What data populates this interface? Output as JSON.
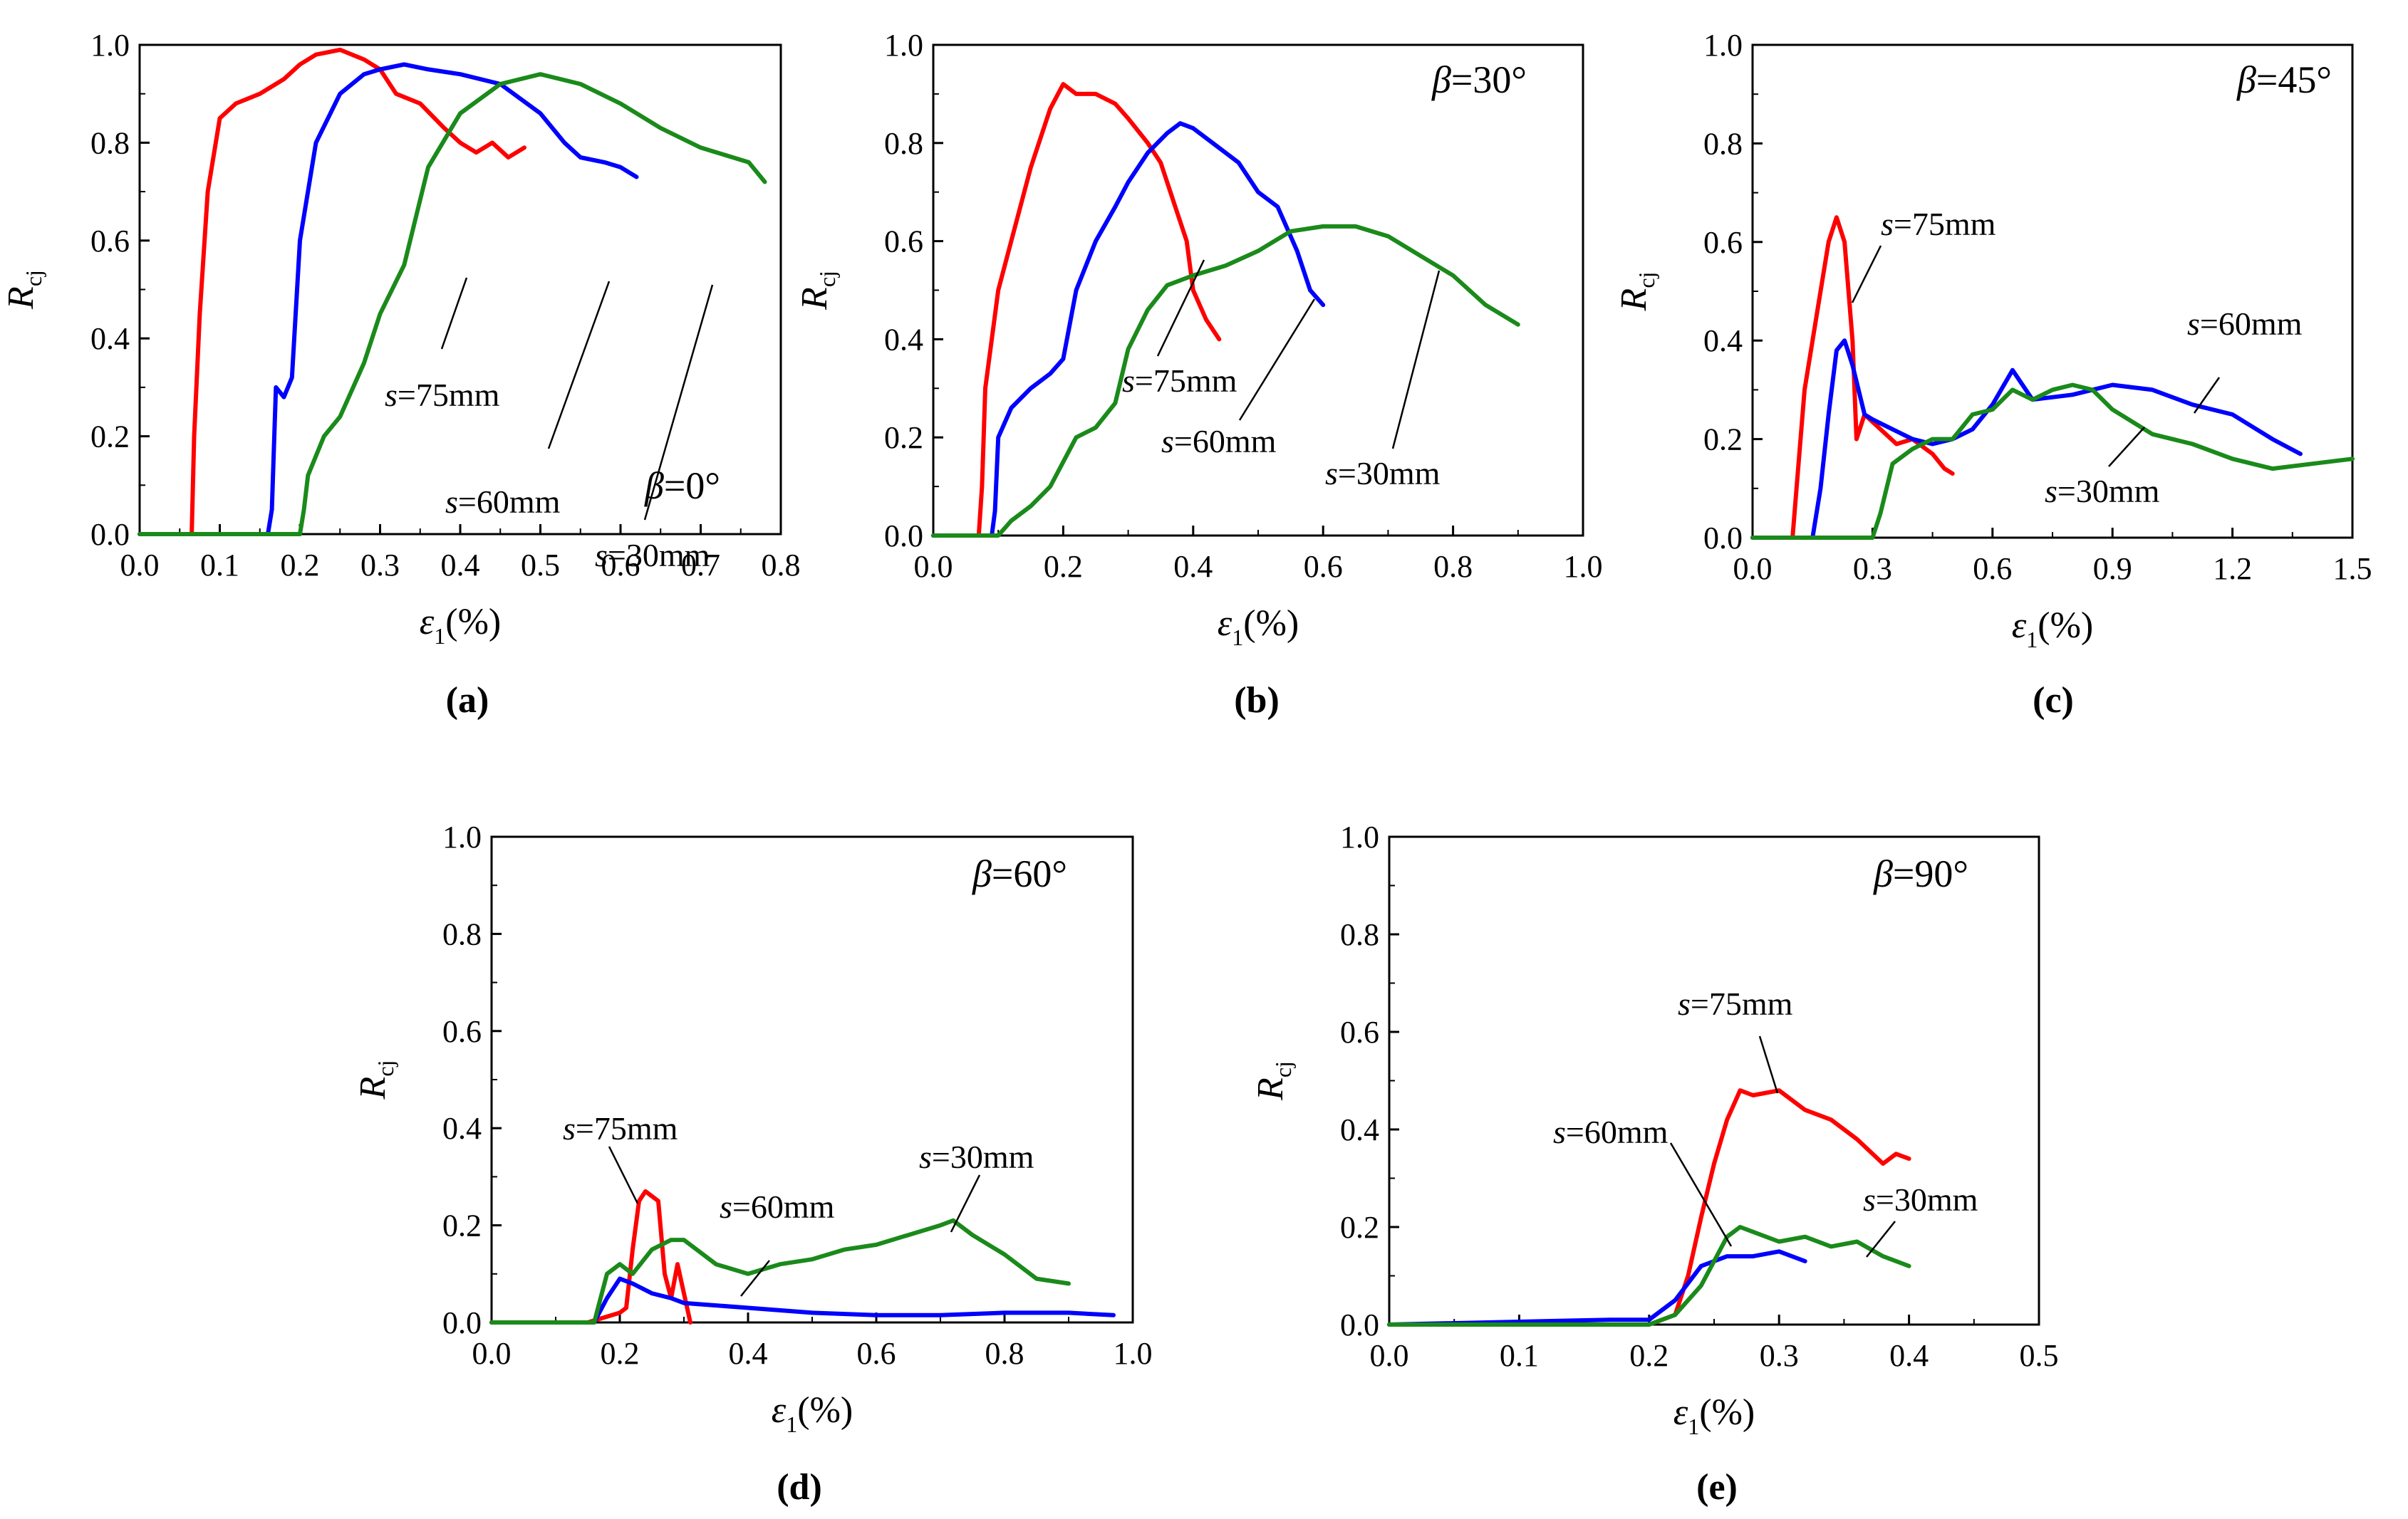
{
  "figure": {
    "series_colors": {
      "s=75mm": "#ff0000",
      "s=60mm": "#0000ff",
      "s=30mm": "#1a8a1a"
    }
  },
  "chart_data": [
    {
      "type": "line",
      "panel_label": "(a)",
      "beta": "β=0°",
      "xlabel": "ε1(%)",
      "ylabel": "Rcj",
      "xlim": [
        0.0,
        0.8
      ],
      "ylim": [
        0.0,
        1.0
      ],
      "xticks": [
        0.0,
        0.1,
        0.2,
        0.3,
        0.4,
        0.5,
        0.6,
        0.7,
        0.8
      ],
      "xtick_labels": [
        "0.0",
        "0.1",
        "0.2",
        "0.3",
        "0.4",
        "0.5",
        "0.6",
        "0.7",
        "0.8"
      ],
      "yticks": [
        0.0,
        0.2,
        0.4,
        0.6,
        0.8,
        1.0
      ],
      "ytick_labels": [
        "0.0",
        "0.2",
        "0.4",
        "0.6",
        "0.8",
        "1.0"
      ],
      "series": [
        {
          "name": "s=75mm",
          "color": "#ff0000",
          "x": [
            0,
            0.065,
            0.068,
            0.075,
            0.085,
            0.1,
            0.12,
            0.15,
            0.18,
            0.2,
            0.22,
            0.25,
            0.28,
            0.3,
            0.32,
            0.35,
            0.38,
            0.4,
            0.42,
            0.44,
            0.46,
            0.48
          ],
          "y": [
            0,
            0,
            0.2,
            0.45,
            0.7,
            0.85,
            0.88,
            0.9,
            0.93,
            0.96,
            0.98,
            0.99,
            0.97,
            0.95,
            0.9,
            0.88,
            0.83,
            0.8,
            0.78,
            0.8,
            0.77,
            0.79
          ]
        },
        {
          "name": "s=60mm",
          "color": "#0000ff",
          "x": [
            0,
            0.16,
            0.165,
            0.17,
            0.18,
            0.19,
            0.2,
            0.22,
            0.25,
            0.28,
            0.3,
            0.33,
            0.36,
            0.4,
            0.45,
            0.5,
            0.53,
            0.55,
            0.58,
            0.6,
            0.62
          ],
          "y": [
            0,
            0,
            0.05,
            0.3,
            0.28,
            0.32,
            0.6,
            0.8,
            0.9,
            0.94,
            0.95,
            0.96,
            0.95,
            0.94,
            0.92,
            0.86,
            0.8,
            0.77,
            0.76,
            0.75,
            0.73
          ]
        },
        {
          "name": "s=30mm",
          "color": "#1a8a1a",
          "x": [
            0,
            0.2,
            0.205,
            0.21,
            0.23,
            0.25,
            0.28,
            0.3,
            0.33,
            0.36,
            0.4,
            0.45,
            0.5,
            0.55,
            0.6,
            0.65,
            0.7,
            0.74,
            0.76,
            0.78
          ],
          "y": [
            0,
            0,
            0.05,
            0.12,
            0.2,
            0.24,
            0.35,
            0.45,
            0.55,
            0.75,
            0.86,
            0.92,
            0.94,
            0.92,
            0.88,
            0.83,
            0.79,
            0.77,
            0.76,
            0.72
          ]
        }
      ],
      "annotations": [
        "s=75mm",
        "s=60mm",
        "s=30mm"
      ]
    },
    {
      "type": "line",
      "panel_label": "(b)",
      "beta": "β=30°",
      "xlabel": "ε1(%)",
      "ylabel": "Rcj",
      "xlim": [
        0.0,
        1.0
      ],
      "ylim": [
        0.0,
        1.0
      ],
      "xticks": [
        0.0,
        0.2,
        0.4,
        0.6,
        0.8,
        1.0
      ],
      "xtick_labels": [
        "0.0",
        "0.2",
        "0.4",
        "0.6",
        "0.8",
        "1.0"
      ],
      "yticks": [
        0.0,
        0.2,
        0.4,
        0.6,
        0.8,
        1.0
      ],
      "ytick_labels": [
        "0.0",
        "0.2",
        "0.4",
        "0.6",
        "0.8",
        "1.0"
      ],
      "series": [
        {
          "name": "s=75mm",
          "color": "#ff0000",
          "x": [
            0,
            0.07,
            0.075,
            0.08,
            0.1,
            0.12,
            0.15,
            0.18,
            0.2,
            0.22,
            0.25,
            0.28,
            0.3,
            0.33,
            0.35,
            0.37,
            0.39,
            0.4,
            0.42,
            0.44
          ],
          "y": [
            0,
            0,
            0.1,
            0.3,
            0.5,
            0.6,
            0.75,
            0.87,
            0.92,
            0.9,
            0.9,
            0.88,
            0.85,
            0.8,
            0.76,
            0.68,
            0.6,
            0.5,
            0.44,
            0.4
          ]
        },
        {
          "name": "s=60mm",
          "color": "#0000ff",
          "x": [
            0,
            0.09,
            0.095,
            0.1,
            0.12,
            0.15,
            0.18,
            0.2,
            0.22,
            0.25,
            0.28,
            0.3,
            0.33,
            0.36,
            0.38,
            0.4,
            0.43,
            0.47,
            0.5,
            0.53,
            0.56,
            0.58,
            0.6
          ],
          "y": [
            0,
            0,
            0.05,
            0.2,
            0.26,
            0.3,
            0.33,
            0.36,
            0.5,
            0.6,
            0.67,
            0.72,
            0.78,
            0.82,
            0.84,
            0.83,
            0.8,
            0.76,
            0.7,
            0.67,
            0.58,
            0.5,
            0.47
          ]
        },
        {
          "name": "s=30mm",
          "color": "#1a8a1a",
          "x": [
            0,
            0.1,
            0.12,
            0.15,
            0.18,
            0.2,
            0.22,
            0.25,
            0.28,
            0.3,
            0.33,
            0.36,
            0.4,
            0.45,
            0.5,
            0.55,
            0.6,
            0.65,
            0.7,
            0.75,
            0.8,
            0.85,
            0.9
          ],
          "y": [
            0,
            0,
            0.03,
            0.06,
            0.1,
            0.15,
            0.2,
            0.22,
            0.27,
            0.38,
            0.46,
            0.51,
            0.53,
            0.55,
            0.58,
            0.62,
            0.63,
            0.63,
            0.61,
            0.57,
            0.53,
            0.47,
            0.43
          ]
        }
      ],
      "annotations": [
        "s=75mm",
        "s=60mm",
        "s=30mm"
      ]
    },
    {
      "type": "line",
      "panel_label": "(c)",
      "beta": "β=45°",
      "xlabel": "ε1(%)",
      "ylabel": "Rcj",
      "xlim": [
        0.0,
        1.5
      ],
      "ylim": [
        0.0,
        1.0
      ],
      "xticks": [
        0.0,
        0.3,
        0.6,
        0.9,
        1.2,
        1.5
      ],
      "xtick_labels": [
        "0.0",
        "0.3",
        "0.6",
        "0.9",
        "1.2",
        "1.5"
      ],
      "yticks": [
        0.0,
        0.2,
        0.4,
        0.6,
        0.8,
        1.0
      ],
      "ytick_labels": [
        "0.0",
        "0.2",
        "0.4",
        "0.6",
        "0.8",
        "1.0"
      ],
      "series": [
        {
          "name": "s=75mm",
          "color": "#ff0000",
          "x": [
            0,
            0.1,
            0.11,
            0.13,
            0.16,
            0.19,
            0.21,
            0.23,
            0.25,
            0.26,
            0.28,
            0.32,
            0.36,
            0.4,
            0.45,
            0.48,
            0.5
          ],
          "y": [
            0,
            0,
            0.1,
            0.3,
            0.45,
            0.6,
            0.65,
            0.6,
            0.4,
            0.2,
            0.25,
            0.22,
            0.19,
            0.2,
            0.17,
            0.14,
            0.13
          ]
        },
        {
          "name": "s=60mm",
          "color": "#0000ff",
          "x": [
            0,
            0.15,
            0.17,
            0.19,
            0.21,
            0.23,
            0.25,
            0.28,
            0.3,
            0.35,
            0.4,
            0.45,
            0.5,
            0.55,
            0.6,
            0.65,
            0.7,
            0.8,
            0.9,
            1.0,
            1.1,
            1.2,
            1.3,
            1.37
          ],
          "y": [
            0,
            0,
            0.1,
            0.25,
            0.38,
            0.4,
            0.35,
            0.25,
            0.24,
            0.22,
            0.2,
            0.19,
            0.2,
            0.22,
            0.27,
            0.34,
            0.28,
            0.29,
            0.31,
            0.3,
            0.27,
            0.25,
            0.2,
            0.17
          ]
        },
        {
          "name": "s=30mm",
          "color": "#1a8a1a",
          "x": [
            0,
            0.3,
            0.32,
            0.35,
            0.4,
            0.45,
            0.5,
            0.55,
            0.6,
            0.65,
            0.7,
            0.75,
            0.8,
            0.85,
            0.9,
            1.0,
            1.1,
            1.2,
            1.3,
            1.4,
            1.5
          ],
          "y": [
            0,
            0,
            0.05,
            0.15,
            0.18,
            0.2,
            0.2,
            0.25,
            0.26,
            0.3,
            0.28,
            0.3,
            0.31,
            0.3,
            0.26,
            0.21,
            0.19,
            0.16,
            0.14,
            0.15,
            0.16
          ]
        }
      ],
      "annotations": [
        "s=75mm",
        "s=60mm",
        "s=30mm"
      ]
    },
    {
      "type": "line",
      "panel_label": "(d)",
      "beta": "β=60°",
      "xlabel": "ε1(%)",
      "ylabel": "Rcj",
      "xlim": [
        0.0,
        1.0
      ],
      "ylim": [
        0.0,
        1.0
      ],
      "xticks": [
        0.0,
        0.2,
        0.4,
        0.6,
        0.8,
        1.0
      ],
      "xtick_labels": [
        "0.0",
        "0.2",
        "0.4",
        "0.6",
        "0.8",
        "1.0"
      ],
      "yticks": [
        0.0,
        0.2,
        0.4,
        0.6,
        0.8,
        1.0
      ],
      "ytick_labels": [
        "0.0",
        "0.2",
        "0.4",
        "0.6",
        "0.8",
        "1.0"
      ],
      "series": [
        {
          "name": "s=75mm",
          "color": "#ff0000",
          "x": [
            0,
            0.15,
            0.2,
            0.21,
            0.22,
            0.23,
            0.24,
            0.25,
            0.26,
            0.27,
            0.28,
            0.29,
            0.3,
            0.31
          ],
          "y": [
            0,
            0,
            0.02,
            0.03,
            0.15,
            0.25,
            0.27,
            0.26,
            0.25,
            0.1,
            0.05,
            0.12,
            0.06,
            0.0
          ]
        },
        {
          "name": "s=60mm",
          "color": "#0000ff",
          "x": [
            0,
            0.16,
            0.18,
            0.2,
            0.22,
            0.25,
            0.28,
            0.3,
            0.35,
            0.4,
            0.5,
            0.6,
            0.7,
            0.8,
            0.9,
            0.97
          ],
          "y": [
            0,
            0,
            0.05,
            0.09,
            0.08,
            0.06,
            0.05,
            0.04,
            0.035,
            0.03,
            0.02,
            0.015,
            0.015,
            0.02,
            0.02,
            0.015
          ]
        },
        {
          "name": "s=30mm",
          "color": "#1a8a1a",
          "x": [
            0,
            0.16,
            0.18,
            0.2,
            0.22,
            0.25,
            0.28,
            0.3,
            0.35,
            0.4,
            0.45,
            0.5,
            0.55,
            0.6,
            0.65,
            0.7,
            0.72,
            0.75,
            0.8,
            0.85,
            0.9
          ],
          "y": [
            0,
            0,
            0.1,
            0.12,
            0.1,
            0.15,
            0.17,
            0.17,
            0.12,
            0.1,
            0.12,
            0.13,
            0.15,
            0.16,
            0.18,
            0.2,
            0.21,
            0.18,
            0.14,
            0.09,
            0.08
          ]
        }
      ],
      "annotations": [
        "s=75mm",
        "s=60mm",
        "s=30mm"
      ]
    },
    {
      "type": "line",
      "panel_label": "(e)",
      "beta": "β=90°",
      "xlabel": "ε1(%)",
      "ylabel": "Rcj",
      "xlim": [
        0.0,
        0.5
      ],
      "ylim": [
        0.0,
        1.0
      ],
      "xticks": [
        0.0,
        0.1,
        0.2,
        0.3,
        0.4,
        0.5
      ],
      "xtick_labels": [
        "0.0",
        "0.1",
        "0.2",
        "0.3",
        "0.4",
        "0.5"
      ],
      "yticks": [
        0.0,
        0.2,
        0.4,
        0.6,
        0.8,
        1.0
      ],
      "ytick_labels": [
        "0.0",
        "0.2",
        "0.4",
        "0.6",
        "0.8",
        "1.0"
      ],
      "series": [
        {
          "name": "s=75mm",
          "color": "#ff0000",
          "x": [
            0,
            0.2,
            0.22,
            0.23,
            0.24,
            0.25,
            0.26,
            0.27,
            0.28,
            0.3,
            0.32,
            0.34,
            0.36,
            0.38,
            0.39,
            0.4
          ],
          "y": [
            0,
            0,
            0.02,
            0.1,
            0.22,
            0.33,
            0.42,
            0.48,
            0.47,
            0.48,
            0.44,
            0.42,
            0.38,
            0.33,
            0.35,
            0.34
          ]
        },
        {
          "name": "s=60mm",
          "color": "#0000ff",
          "x": [
            0,
            0.17,
            0.2,
            0.22,
            0.24,
            0.25,
            0.26,
            0.28,
            0.3,
            0.32
          ],
          "y": [
            0,
            0.01,
            0.01,
            0.05,
            0.12,
            0.13,
            0.14,
            0.14,
            0.15,
            0.13
          ]
        },
        {
          "name": "s=30mm",
          "color": "#1a8a1a",
          "x": [
            0,
            0.2,
            0.22,
            0.24,
            0.26,
            0.27,
            0.28,
            0.3,
            0.32,
            0.34,
            0.36,
            0.38,
            0.4
          ],
          "y": [
            0,
            0,
            0.02,
            0.08,
            0.18,
            0.2,
            0.19,
            0.17,
            0.18,
            0.16,
            0.17,
            0.14,
            0.12
          ]
        }
      ],
      "annotations": [
        "s=75mm",
        "s=60mm",
        "s=30mm"
      ]
    }
  ]
}
